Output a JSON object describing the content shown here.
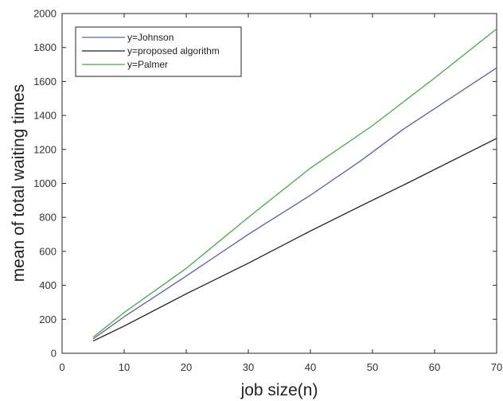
{
  "chart_data": {
    "type": "line",
    "title": "",
    "xlabel": "job size(n)",
    "ylabel": "mean of total waiting times",
    "xlim": [
      0,
      70
    ],
    "ylim": [
      0,
      2000
    ],
    "xticks": [
      0,
      10,
      20,
      30,
      40,
      50,
      60,
      70
    ],
    "yticks": [
      0,
      200,
      400,
      600,
      800,
      1000,
      1200,
      1400,
      1600,
      1800,
      2000
    ],
    "grid": false,
    "legend_position": "top-left",
    "series": [
      {
        "name": "y=Johnson",
        "color": "#5b5fa8",
        "points": [
          [
            5,
            85
          ],
          [
            10,
            215
          ],
          [
            20,
            455
          ],
          [
            30,
            700
          ],
          [
            40,
            930
          ],
          [
            48,
            1130
          ],
          [
            55,
            1320
          ],
          [
            70,
            1680
          ]
        ]
      },
      {
        "name": "y=proposed algorithm",
        "color": "#1e1e1e",
        "points": [
          [
            5,
            72
          ],
          [
            10,
            160
          ],
          [
            20,
            350
          ],
          [
            30,
            530
          ],
          [
            40,
            720
          ],
          [
            48,
            865
          ],
          [
            55,
            990
          ],
          [
            70,
            1265
          ]
        ]
      },
      {
        "name": "y=Palmer",
        "color": "#4aa84a",
        "points": [
          [
            5,
            95
          ],
          [
            10,
            240
          ],
          [
            20,
            500
          ],
          [
            30,
            800
          ],
          [
            40,
            1090
          ],
          [
            50,
            1340
          ],
          [
            60,
            1620
          ],
          [
            70,
            1910
          ]
        ]
      }
    ]
  }
}
